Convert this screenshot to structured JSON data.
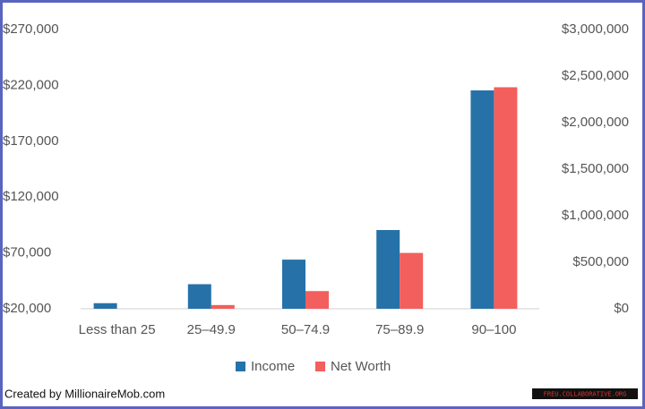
{
  "chart_data": {
    "type": "bar",
    "categories": [
      "Less than 25",
      "25–49.9",
      "50–74.9",
      "75–89.9",
      "90–100"
    ],
    "series": [
      {
        "name": "Income",
        "color": "#2672a8",
        "values": [
          25000,
          42000,
          64000,
          90500,
          215500
        ]
      },
      {
        "name": "Net Worth",
        "color": "#f25f5c",
        "axis": "y2",
        "values": [
          0,
          40000,
          190000,
          600000,
          2380000
        ]
      }
    ],
    "ylim": [
      20000,
      270000
    ],
    "yticks": [
      {
        "value": 20000,
        "label": "$20,000"
      },
      {
        "value": 70000,
        "label": "$70,000"
      },
      {
        "value": 120000,
        "label": "$120,000"
      },
      {
        "value": 170000,
        "label": "$170,000"
      },
      {
        "value": 220000,
        "label": "$220,000"
      },
      {
        "value": 270000,
        "label": "$270,000"
      }
    ],
    "y2lim": [
      0,
      3000000
    ],
    "y2ticks": [
      {
        "value": 0,
        "label": "$0"
      },
      {
        "value": 500000,
        "label": "$500,000"
      },
      {
        "value": 1000000,
        "label": "$1,000,000"
      },
      {
        "value": 1500000,
        "label": "$1,500,000"
      },
      {
        "value": 2000000,
        "label": "$2,000,000"
      },
      {
        "value": 2500000,
        "label": "$2,500,000"
      },
      {
        "value": 3000000,
        "label": "$3,000,000"
      }
    ],
    "grid": false,
    "legend": "bottom"
  },
  "credit": "Created by MillionaireMob.com",
  "watermark": "FREU.COLLABORATIVE.ORG"
}
